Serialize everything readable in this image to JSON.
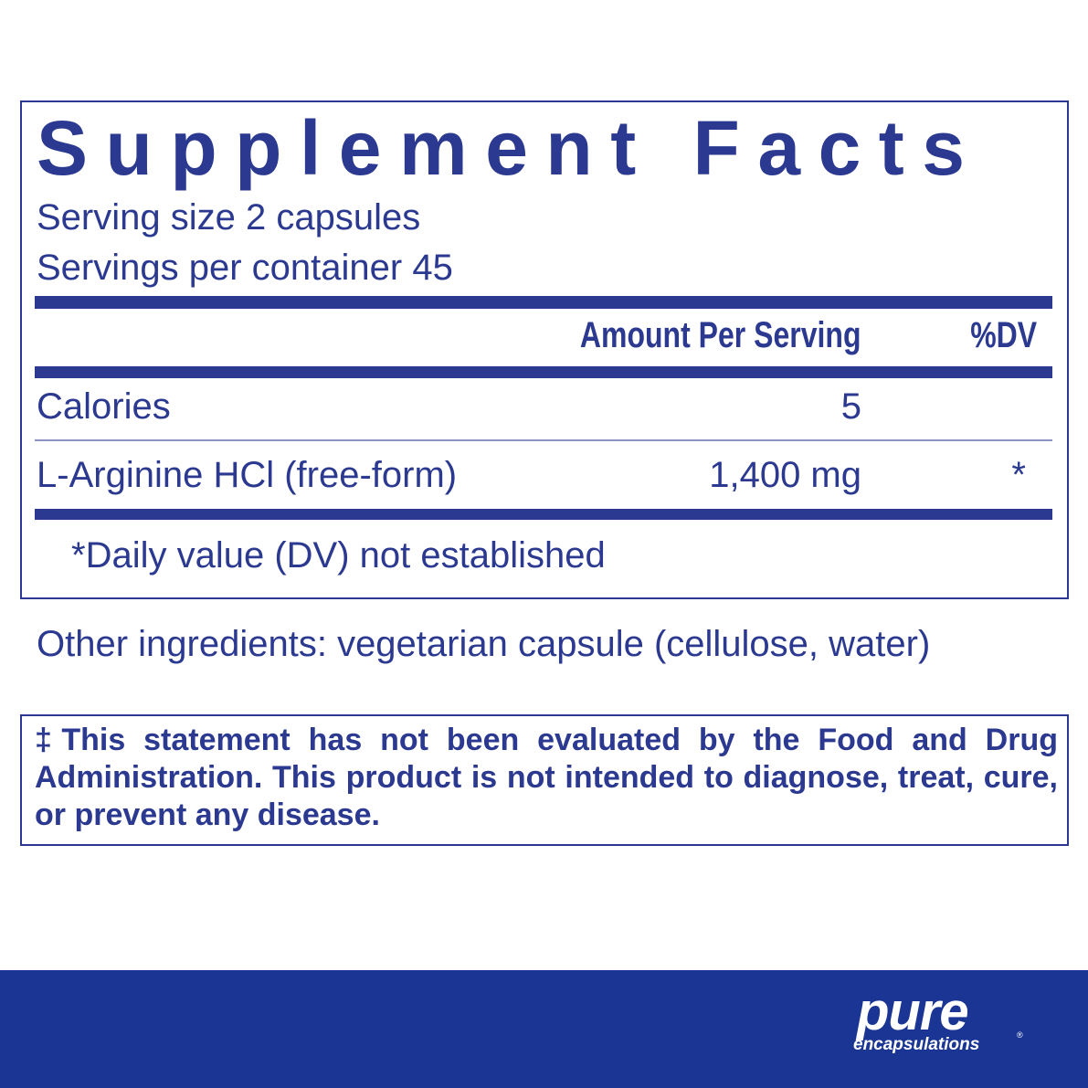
{
  "title": "Supplement Facts",
  "serving_size": "Serving size  2 capsules",
  "servings_per_container": "Servings per container  45",
  "header": {
    "amount": "Amount Per Serving",
    "dv": "%DV"
  },
  "rows": [
    {
      "name": "Calories",
      "amount": "5",
      "dv": ""
    },
    {
      "name": "L-Arginine HCl (free-form)",
      "amount": "1,400 mg",
      "dv": "*"
    }
  ],
  "footnote": "*Daily value (DV) not established",
  "other_ingredients": "Other ingredients: vegetarian capsule (cellulose, water)",
  "disclaimer": "‡This statement has not been evaluated by the Food and Drug Administration. This product is not intended to diagnose, treat, cure, or prevent any disease.",
  "logo": {
    "line1": "pure",
    "line2": "encapsulations",
    "mark": "®"
  },
  "colors": {
    "text": "#2b3990",
    "footer": "#1a3594"
  }
}
